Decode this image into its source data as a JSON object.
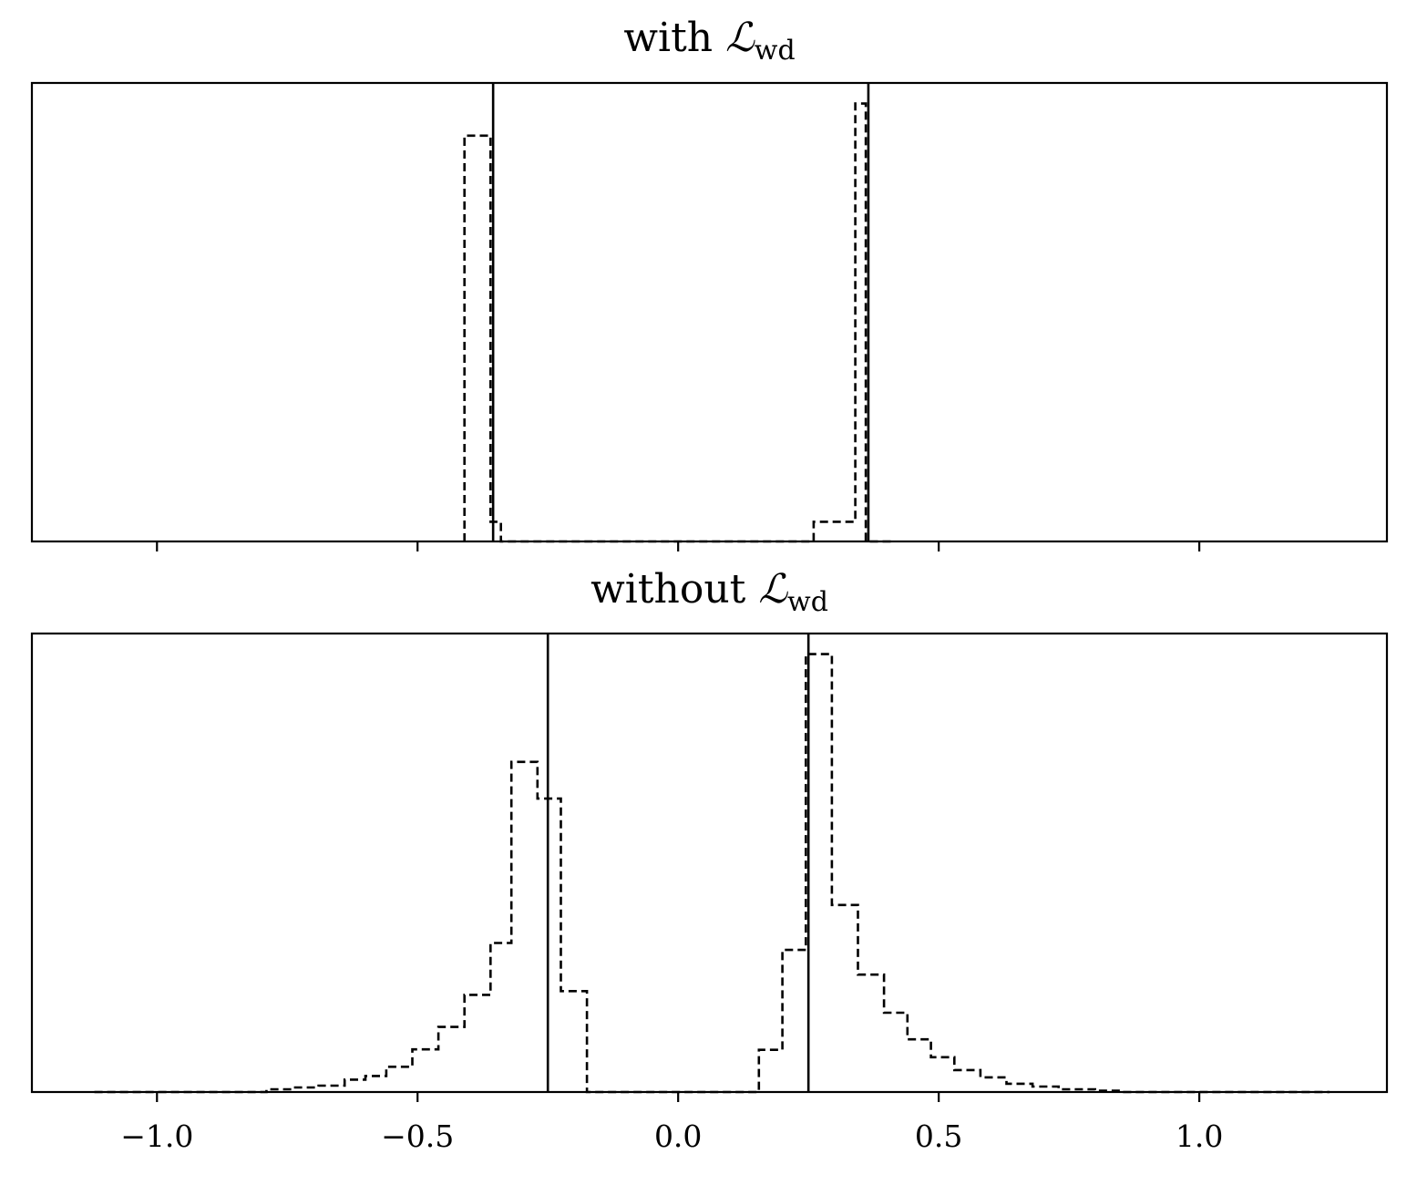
{
  "chart_data": [
    {
      "type": "histogram",
      "title_main": "with ",
      "title_symbol": "ℒ",
      "title_subscript": "wd",
      "xlim": [
        -1.24,
        1.36
      ],
      "ylim": [
        0,
        1.0
      ],
      "x_ticks": [
        -1.0,
        -0.5,
        0.0,
        0.5,
        1.0
      ],
      "x_tick_labels_visible": false,
      "y_ticks": [],
      "histogram": {
        "style": "dashed-step",
        "bin_edges": [
          -0.41,
          -0.36,
          -0.34,
          -0.26,
          0.26,
          0.34,
          0.36,
          0.415
        ],
        "counts": [
          0.885,
          0.043,
          0.0,
          0.0,
          0.043,
          0.955,
          0.0
        ]
      },
      "vertical_lines": [
        -0.355,
        0.365
      ]
    },
    {
      "type": "histogram",
      "title_main": "without ",
      "title_symbol": "ℒ",
      "title_subscript": "wd",
      "xlim": [
        -1.24,
        1.36
      ],
      "ylim": [
        0,
        1.0
      ],
      "x_ticks": [
        -1.0,
        -0.5,
        0.0,
        0.5,
        1.0
      ],
      "x_tick_labels": [
        "−1.0",
        "−0.5",
        "0.0",
        "0.5",
        "1.0"
      ],
      "y_ticks": [],
      "histogram": {
        "style": "dashed-step",
        "bin_edges": [
          -1.12,
          -0.84,
          -0.79,
          -0.74,
          -0.69,
          -0.64,
          -0.6,
          -0.56,
          -0.51,
          -0.46,
          -0.41,
          -0.36,
          -0.32,
          -0.27,
          -0.225,
          -0.175,
          -0.13,
          0.09,
          0.14,
          0.155,
          0.2,
          0.245,
          0.295,
          0.345,
          0.395,
          0.44,
          0.485,
          0.53,
          0.58,
          0.63,
          0.68,
          0.73,
          0.8,
          0.85,
          1.25
        ],
        "counts": [
          0.0,
          0.0,
          0.006,
          0.01,
          0.014,
          0.027,
          0.035,
          0.055,
          0.093,
          0.142,
          0.212,
          0.325,
          0.72,
          0.64,
          0.22,
          0.0,
          0.0,
          0.0,
          0.0,
          0.092,
          0.31,
          0.955,
          0.408,
          0.256,
          0.173,
          0.115,
          0.076,
          0.048,
          0.032,
          0.018,
          0.012,
          0.006,
          0.003,
          0.0
        ]
      },
      "vertical_lines": [
        -0.25,
        0.25
      ]
    }
  ]
}
